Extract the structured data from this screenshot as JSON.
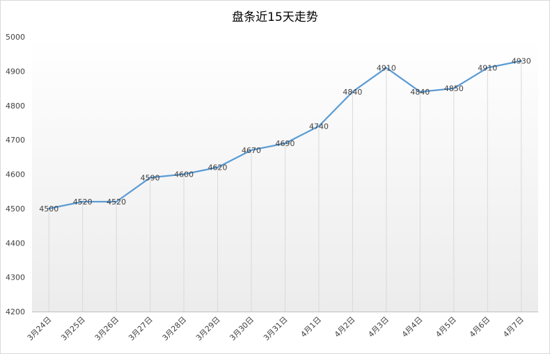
{
  "chart_data": {
    "type": "line",
    "title": "盘条近15天走势",
    "xlabel": "",
    "ylabel": "",
    "categories": [
      "3月24日",
      "3月25日",
      "3月26日",
      "3月27日",
      "3月28日",
      "3月29日",
      "3月30日",
      "3月31日",
      "4月1日",
      "4月2日",
      "4月3日",
      "4月4日",
      "4月5日",
      "4月6日",
      "4月7日"
    ],
    "series": [
      {
        "values": [
          4500,
          4520,
          4520,
          4590,
          4600,
          4620,
          4670,
          4690,
          4740,
          4840,
          4910,
          4840,
          4850,
          4910,
          4930
        ]
      }
    ],
    "ylim": [
      4200,
      5000
    ],
    "yticks": [
      4200,
      4300,
      4400,
      4500,
      4600,
      4700,
      4800,
      4900,
      5000
    ],
    "grid": "vertical",
    "data_labels": true,
    "legend": "none",
    "colors": {
      "line": "#5b9bd5",
      "grid": "#d9d9d9",
      "text": "#404040",
      "title": "#000000",
      "bg_gradient_top": "#ffffff",
      "bg_gradient_bottom": "#eeeeee"
    }
  }
}
